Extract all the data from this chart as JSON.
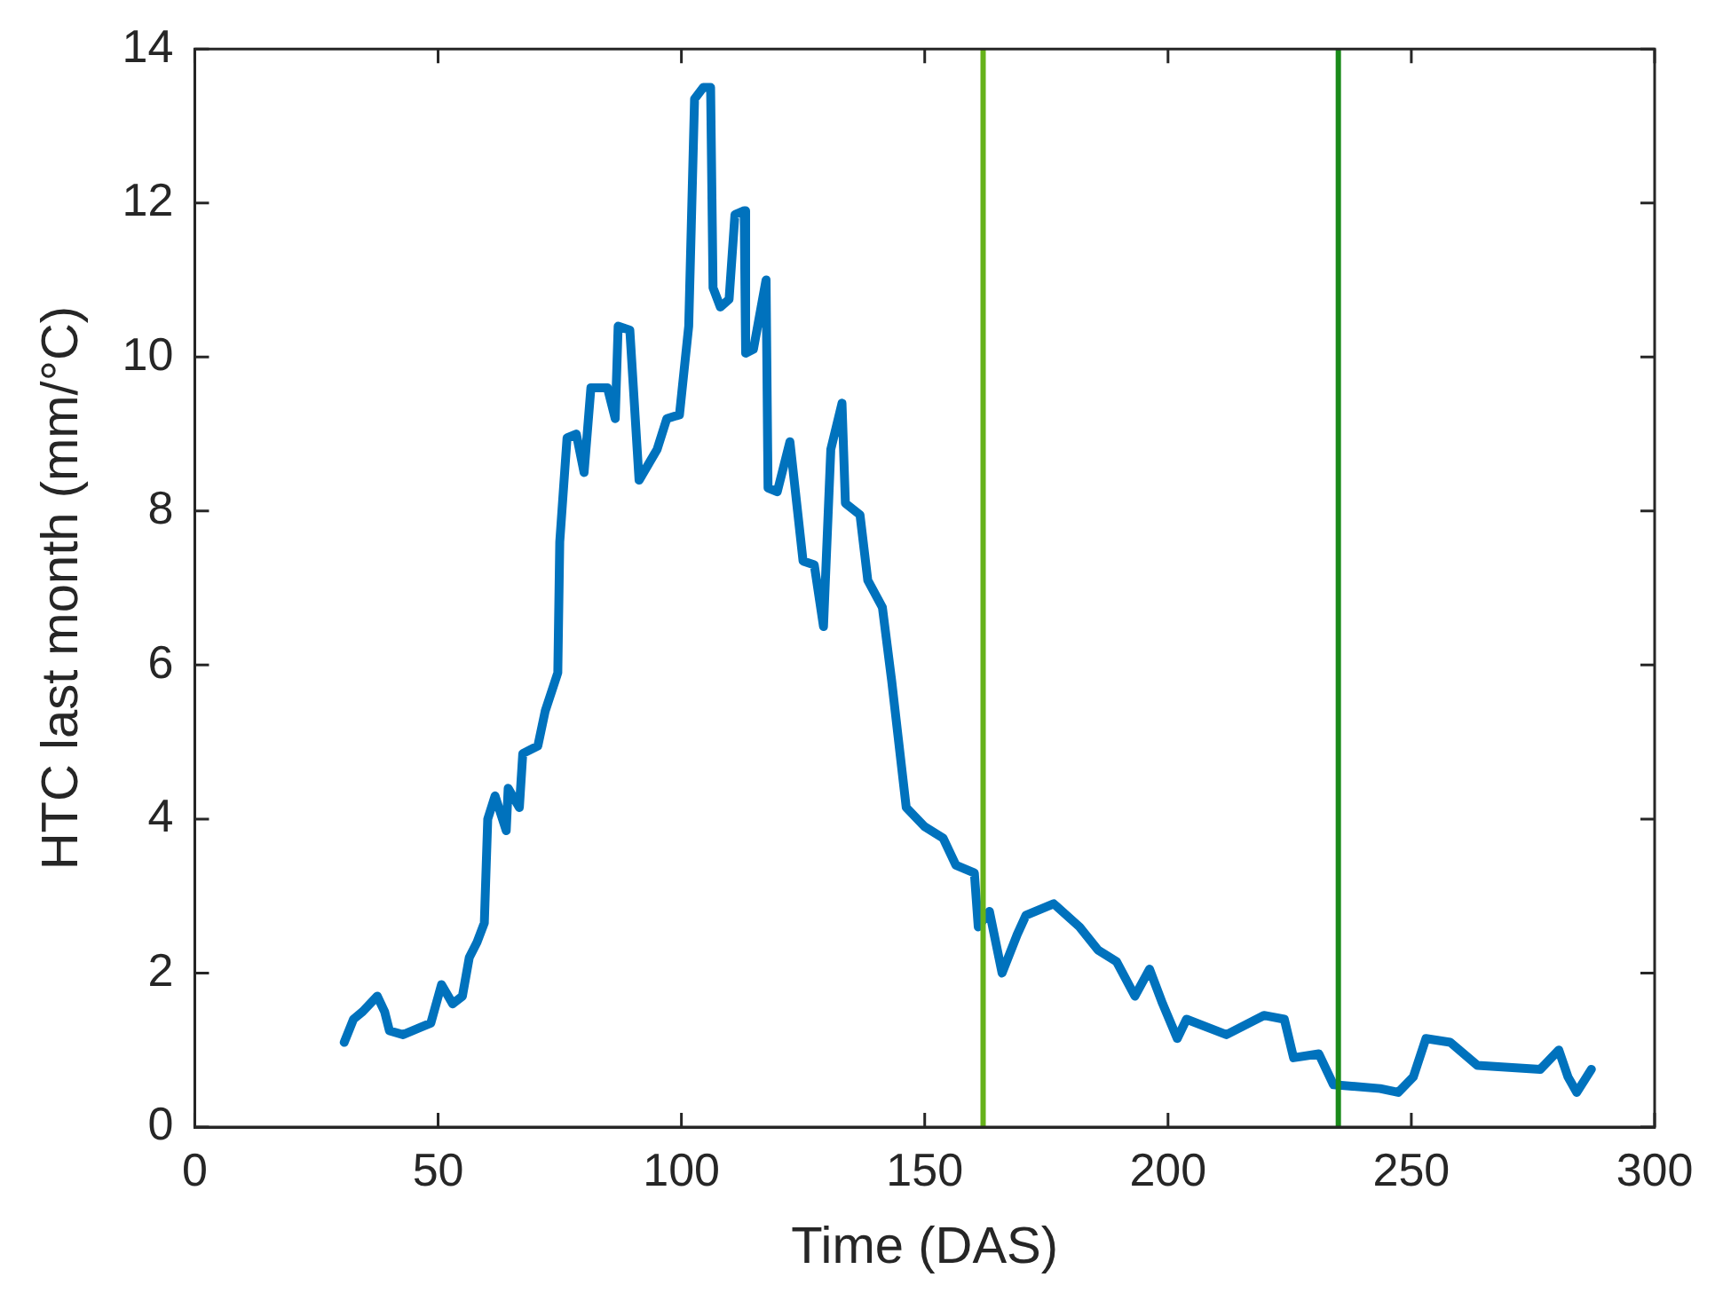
{
  "chart_data": {
    "type": "line",
    "xlabel": "Time (DAS)",
    "ylabel": "HTC last month (mm/°C)",
    "xlim": [
      0,
      300
    ],
    "xticks": [
      0,
      50,
      100,
      150,
      200,
      250,
      300
    ],
    "ylim": [
      0,
      14
    ],
    "yticks": [
      0,
      2,
      4,
      6,
      8,
      10,
      12,
      14
    ],
    "grid": false,
    "legend": false,
    "marker": "none",
    "line_style": "solid",
    "ref_lines": [
      {
        "axis": "x",
        "value": 162,
        "color": "#66b21a"
      },
      {
        "axis": "x",
        "value": 235,
        "color": "#1a8a1a"
      }
    ],
    "series": [
      {
        "color": "#0072bd",
        "x": [
          30.7,
          32.6,
          34.5,
          37.5,
          39,
          40,
          42.8,
          46.6,
          48.5,
          50.7,
          53,
          55,
          56.4,
          58,
          59.5,
          60.2,
          61.7,
          64,
          64.4,
          66.7,
          67.4,
          70.5,
          72,
          74.6,
          75,
          76.5,
          78.4,
          80,
          81.4,
          84.8,
          86.4,
          87,
          89.4,
          91.3,
          95,
          97,
          99.6,
          101.5,
          102.7,
          104.5,
          106,
          106.5,
          108,
          109.8,
          111,
          112.9,
          113.2,
          114.8,
          117.4,
          117.8,
          119.7,
          122.3,
          125,
          127.3,
          129.2,
          130.7,
          133,
          133.7,
          136.7,
          138.3,
          141.3,
          143.2,
          146.2,
          150,
          153.8,
          156.4,
          160.2,
          161,
          163.3,
          165.9,
          169,
          170.8,
          176.5,
          181.8,
          185.6,
          189.4,
          193.2,
          196.2,
          198.9,
          201.9,
          203.8,
          212,
          219.7,
          223.9,
          225.8,
          231,
          234,
          243.6,
          247.3,
          250.4,
          253,
          258,
          263.6,
          276.5,
          280.3,
          282.2,
          284,
          287
        ],
        "values": [
          1.1,
          1.4,
          1.5,
          1.7,
          1.5,
          1.25,
          1.2,
          1.3,
          1.35,
          1.85,
          1.6,
          1.7,
          2.2,
          2.4,
          2.65,
          4.0,
          4.3,
          3.85,
          4.4,
          4.15,
          4.85,
          4.95,
          5.4,
          5.9,
          7.6,
          8.95,
          9.0,
          8.5,
          9.6,
          9.6,
          9.2,
          10.4,
          10.35,
          8.4,
          8.8,
          9.2,
          9.25,
          10.4,
          13.35,
          13.5,
          13.5,
          10.9,
          10.65,
          10.75,
          11.85,
          11.9,
          10.05,
          10.1,
          11.0,
          8.3,
          8.25,
          8.9,
          7.35,
          7.3,
          6.5,
          8.8,
          9.4,
          8.1,
          7.95,
          7.1,
          6.75,
          5.8,
          4.15,
          3.9,
          3.75,
          3.4,
          3.3,
          2.6,
          2.8,
          2.0,
          2.5,
          2.75,
          2.9,
          2.6,
          2.3,
          2.15,
          1.7,
          2.05,
          1.6,
          1.15,
          1.4,
          1.2,
          1.45,
          1.4,
          0.9,
          0.95,
          0.55,
          0.5,
          0.45,
          0.65,
          1.15,
          1.1,
          0.8,
          0.75,
          1.0,
          0.65,
          0.45,
          0.75
        ]
      }
    ]
  }
}
